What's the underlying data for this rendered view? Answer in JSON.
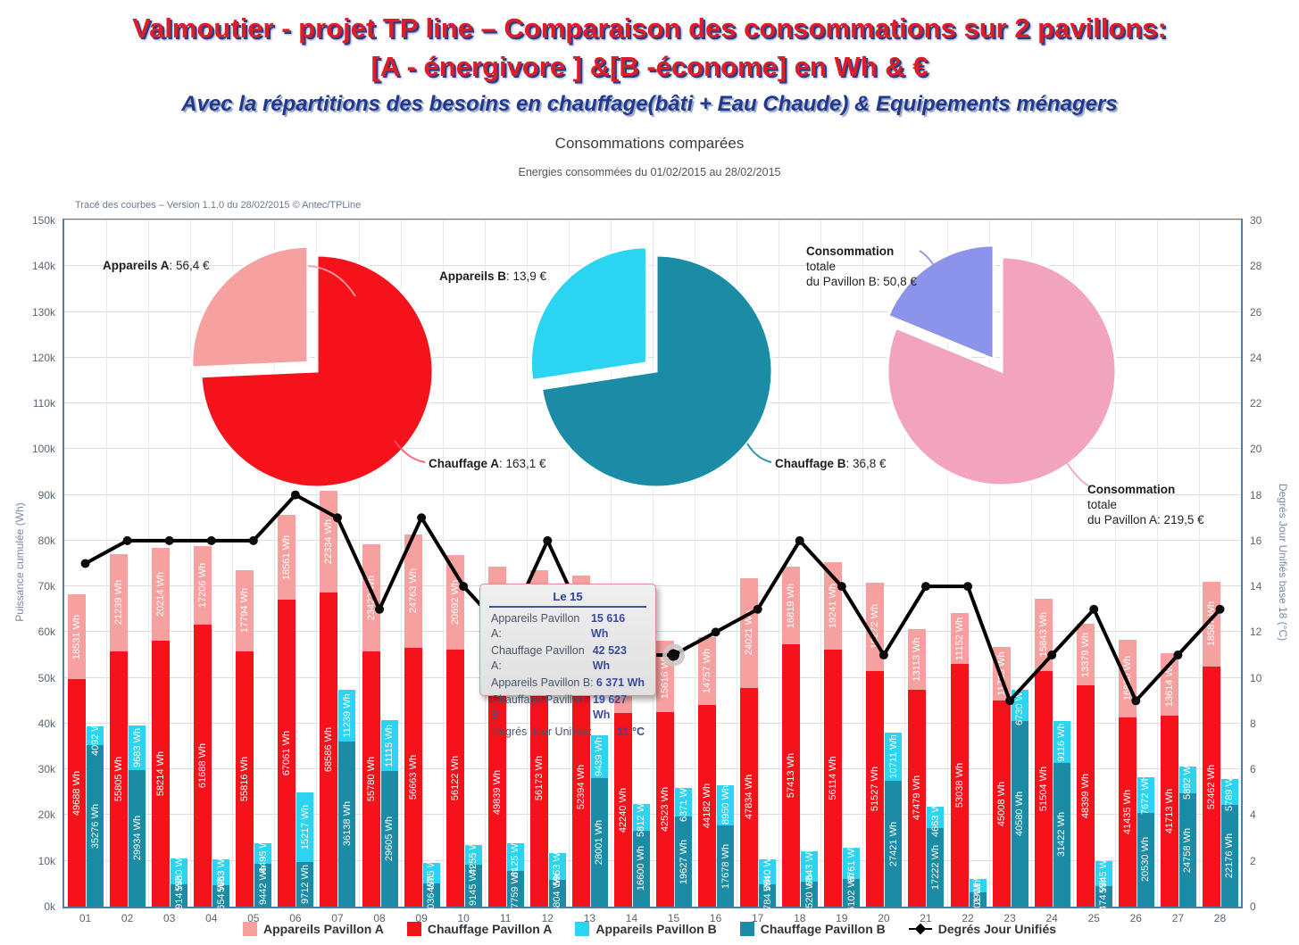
{
  "header": {
    "line1": "Valmoutier - projet TP line – Comparaison  des consommations  sur 2 pavillons:",
    "line2": "[A - énergivore ] &[B -économe] en Wh & €",
    "line3": "Avec la répartitions des besoins en chauffage(bâti + Eau Chaude) & Equipements ménagers"
  },
  "chart": {
    "title": "Consommations comparées",
    "period": "Energies consommées du 01/02/2015 au 28/02/2015",
    "version_note": "Tracé des courbes – Version 1.1.0 du 28/02/2015 © Antec/TPLine"
  },
  "axes": {
    "y_left": {
      "label": "Puissance cumulée (Wh)",
      "ticks": [
        "0k",
        "10k",
        "20k",
        "30k",
        "40k",
        "50k",
        "60k",
        "70k",
        "80k",
        "90k",
        "100k",
        "110k",
        "120k",
        "130k",
        "140k",
        "150k"
      ]
    },
    "y_right": {
      "label": "Degrés Jour Unifiés base 18 (°C)",
      "ticks": [
        "0",
        "2",
        "4",
        "6",
        "8",
        "10",
        "12",
        "14",
        "16",
        "18",
        "20",
        "22",
        "24",
        "26",
        "28",
        "30"
      ]
    }
  },
  "pie_labels": {
    "appareils_a": {
      "name": "Appareils A",
      "value": ": 56,4 €"
    },
    "chauffage_a": {
      "name": "Chauffage A",
      "value": ": 163,1 €"
    },
    "appareils_b": {
      "name": "Appareils B",
      "value": ": 13,9 €"
    },
    "chauffage_b": {
      "name": "Chauffage B",
      "value": ": 36,8 €"
    },
    "total_b": {
      "line1": "Consommation",
      "line2": "totale",
      "line3": "du Pavillon B: 50,8 €"
    },
    "total_a": {
      "line1": "Consommation",
      "line2": "totale",
      "line3": "du Pavillon A: 219,5 €"
    }
  },
  "tooltip": {
    "title": "Le 15",
    "rows": [
      {
        "label": "Appareils Pavillon A:",
        "value": "15 616 Wh"
      },
      {
        "label": "Chauffage Pavillon A:",
        "value": "42 523 Wh"
      },
      {
        "label": "Appareils Pavillon B:",
        "value": "6 371 Wh"
      },
      {
        "label": "Chauffage Pavillon B:",
        "value": "19 627 Wh"
      },
      {
        "label": "Degrés Jour Unifiés:",
        "value": "11 °C"
      }
    ]
  },
  "legend": [
    {
      "label": "Appareils Pavillon A",
      "color": "#F7A0A0",
      "type": "square"
    },
    {
      "label": "Chauffage Pavillon A",
      "color": "#F5121B",
      "type": "square"
    },
    {
      "label": "Appareils Pavillon B",
      "color": "#2BD5F2",
      "type": "square"
    },
    {
      "label": "Chauffage Pavillon B",
      "color": "#1A8CA6",
      "type": "square"
    },
    {
      "label": "Degrés Jour Unifiés",
      "color": "#000000",
      "type": "line-diamond"
    }
  ],
  "chart_data": {
    "type": "bar",
    "subtype": "stacked-bars-with-line",
    "title": "Consommations comparées",
    "categories": [
      "01",
      "02",
      "03",
      "04",
      "05",
      "06",
      "07",
      "08",
      "09",
      "10",
      "11",
      "12",
      "13",
      "14",
      "15",
      "16",
      "17",
      "18",
      "19",
      "20",
      "21",
      "22",
      "23",
      "24",
      "25",
      "26",
      "27",
      "28"
    ],
    "unit": "Wh",
    "ylim_left": [
      0,
      150000
    ],
    "ylim_right": [
      0,
      30
    ],
    "grid": true,
    "legend_position": "bottom",
    "selected_day_index": 14,
    "series": [
      {
        "name": "Chauffage Pavillon A",
        "stack": "A",
        "color": "#F5121B",
        "values": [
          49688,
          55805,
          58214,
          61688,
          55816,
          67061,
          68586,
          55780,
          56663,
          56122,
          49839,
          56173,
          52394,
          42240,
          42523,
          44182,
          47834,
          57413,
          56114,
          51527,
          47479,
          53038,
          45008,
          51504,
          48399,
          41435,
          41713,
          52462
        ]
      },
      {
        "name": "Appareils Pavillon A",
        "stack": "A",
        "color": "#F7A0A0",
        "values": [
          18531,
          21239,
          20214,
          17206,
          17794,
          18561,
          22334,
          23422,
          24763,
          20692,
          24500,
          17400,
          20000,
          15900,
          15616,
          14757,
          24021,
          16819,
          19241,
          19272,
          13113,
          11152,
          11735,
          15843,
          13379,
          16830,
          13614,
          18587
        ]
      },
      {
        "name": "Chauffage Pavillon B",
        "stack": "B",
        "color": "#1A8CA6",
        "values": [
          35276,
          29934,
          4914,
          4654,
          9442,
          9712,
          36138,
          29605,
          5036,
          9145,
          7759,
          5804,
          28001,
          16600,
          19627,
          17678,
          4784,
          5520,
          6102,
          27421,
          17222,
          3201,
          40580,
          31422,
          4474,
          20530,
          24758,
          22176
        ]
      },
      {
        "name": "Appareils Pavillon B",
        "stack": "B",
        "color": "#2BD5F2",
        "values": [
          4092,
          9683,
          5580,
          5663,
          4495,
          15217,
          11239,
          11115,
          4575,
          4255,
          6125,
          5953,
          9439,
          5812,
          6371,
          8950,
          5540,
          6643,
          6761,
          10711,
          4663,
          2901,
          6730,
          9116,
          5545,
          7672,
          5892,
          5789
        ]
      },
      {
        "name": "Degrés Jour Unifiés",
        "type": "line",
        "axis": "right",
        "color": "#000000",
        "values": [
          15,
          16,
          16,
          16,
          16,
          18,
          17,
          13,
          17,
          14,
          12,
          16,
          12,
          11,
          11,
          12,
          13,
          16,
          14,
          11,
          14,
          14,
          9,
          11,
          13,
          9,
          11,
          13
        ]
      }
    ],
    "pies": [
      {
        "name": "repartition-pavillon-a",
        "slices": [
          {
            "name": "Chauffage A",
            "value": 163.1,
            "color": "#F5121B"
          },
          {
            "name": "Appareils A",
            "value": 56.4,
            "color": "#F7A0A0",
            "exploded": true
          }
        ]
      },
      {
        "name": "repartition-pavillon-b",
        "slices": [
          {
            "name": "Chauffage B",
            "value": 36.8,
            "color": "#1A8CA6"
          },
          {
            "name": "Appareils B",
            "value": 13.9,
            "color": "#2BD5F2",
            "exploded": true
          }
        ]
      },
      {
        "name": "consommation-totale",
        "slices": [
          {
            "name": "Consommation totale du Pavillon A",
            "value": 219.5,
            "color": "#F2A3BE"
          },
          {
            "name": "Consommation totale du Pavillon B",
            "value": 50.8,
            "color": "#8B93EA",
            "exploded": true
          }
        ]
      }
    ]
  }
}
